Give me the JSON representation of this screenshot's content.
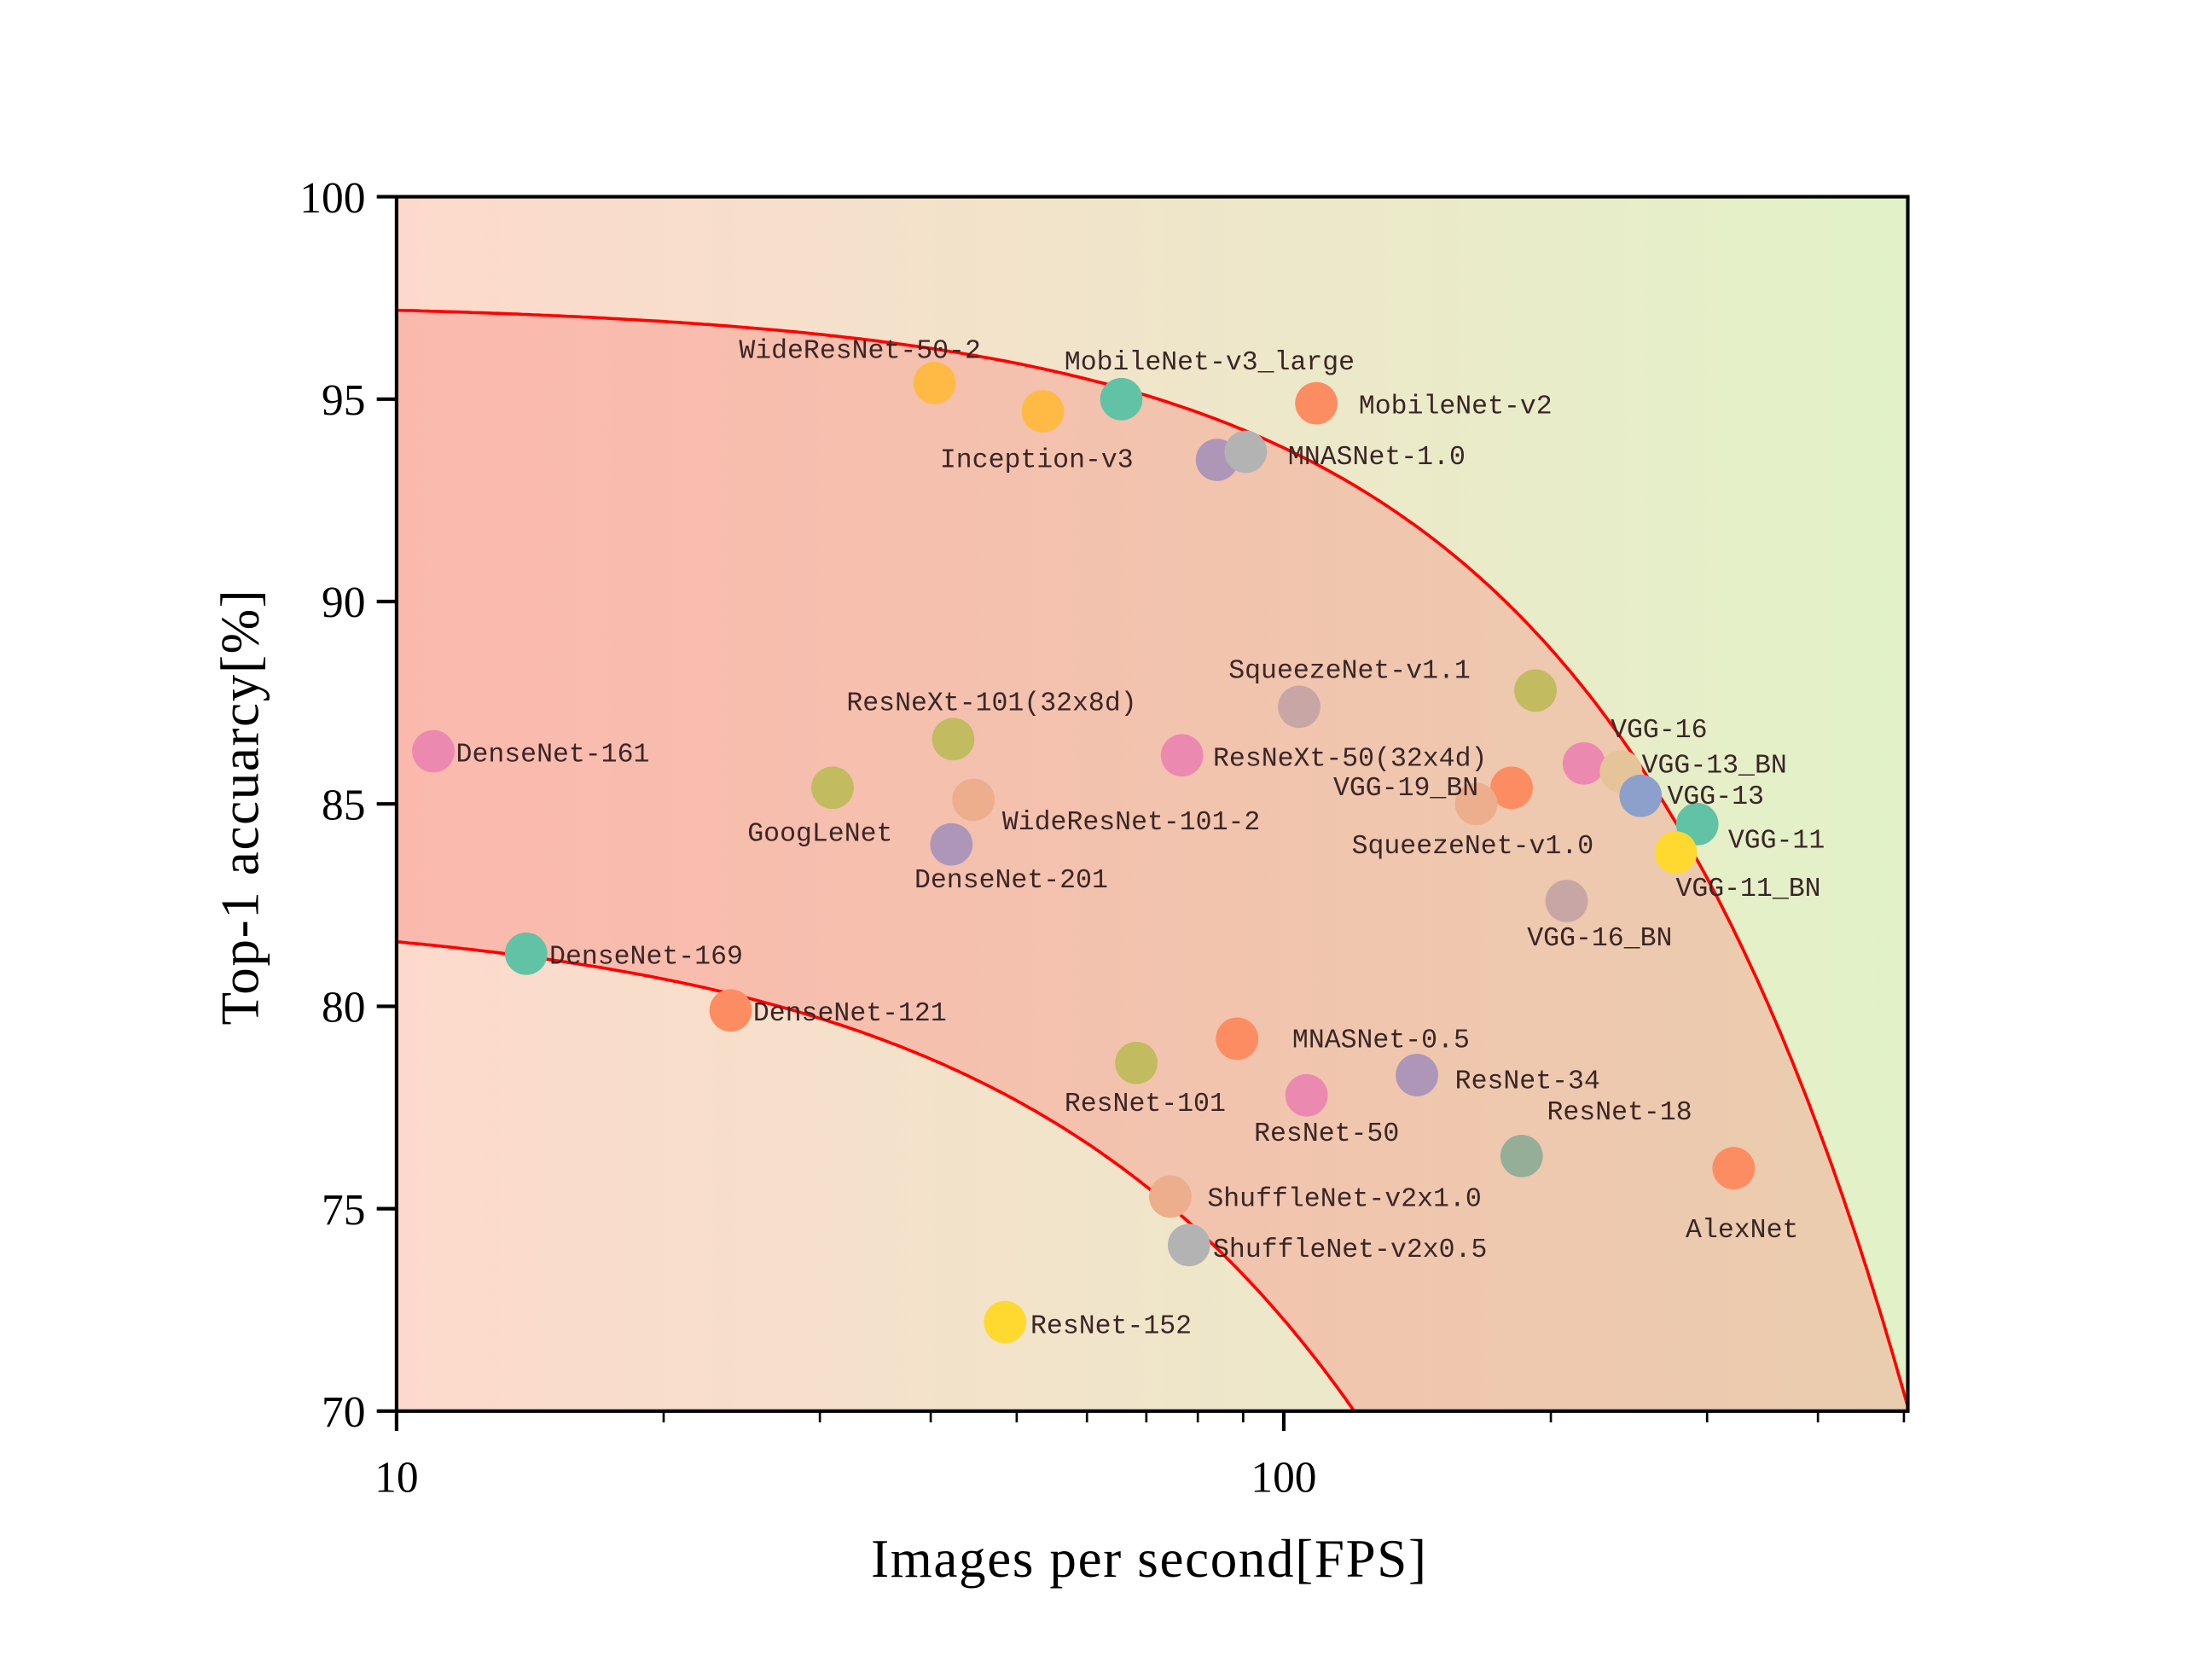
{
  "chart_data": {
    "type": "scatter",
    "title": "",
    "xlabel": "Images per second[FPS]",
    "ylabel": "Top-1 accuarcy[%]",
    "xscale": "log",
    "xlim": [
      10,
      505
    ],
    "ylim": [
      70,
      100
    ],
    "xticks": [
      10,
      100
    ],
    "xtick_labels": [
      "10",
      "100"
    ],
    "yticks": [
      70,
      75,
      80,
      85,
      90,
      95,
      100
    ],
    "ytick_labels": [
      "70",
      "75",
      "80",
      "85",
      "90",
      "95",
      "100"
    ],
    "grid": false,
    "legend": "none",
    "background_gradient": [
      "#fdd9cc",
      "#e2f2c8"
    ],
    "band_gradient": [
      "#fbb9ae",
      "#eacdaf"
    ],
    "curve_color": "#ff0000",
    "points": [
      {
        "label": "DenseNet-161",
        "x": 11.0,
        "y": 86.3,
        "color": "#ec89b0"
      },
      {
        "label": "DenseNet-169",
        "x": 14.0,
        "y": 81.3,
        "color": "#62c2a6"
      },
      {
        "label": "DenseNet-121",
        "x": 23.8,
        "y": 79.9,
        "color": "#fc8d62"
      },
      {
        "label": "GoogLeNet",
        "x": 31.0,
        "y": 85.4,
        "color": "#c2bb5f"
      },
      {
        "label": "ResNeXt-101(32x8d)",
        "x": 42.4,
        "y": 86.6,
        "color": "#c2bb5f"
      },
      {
        "label": "WideResNet-101-2",
        "x": 44.7,
        "y": 85.1,
        "color": "#ecae8c"
      },
      {
        "label": "DenseNet-201",
        "x": 42.2,
        "y": 84.0,
        "color": "#ad96b8"
      },
      {
        "label": "WideResNet-50-2",
        "x": 40.4,
        "y": 95.4,
        "color": "#ffba45"
      },
      {
        "label": "Inception-v3",
        "x": 53.5,
        "y": 94.7,
        "color": "#ffba45"
      },
      {
        "label": "MobileNet-v3_large",
        "x": 65.6,
        "y": 95.0,
        "color": "#62c2a6"
      },
      {
        "label": "MobileNet-v2",
        "x": 108.8,
        "y": 94.9,
        "color": "#fc8d62"
      },
      {
        "label": "",
        "x": 84.1,
        "y": 93.5,
        "color": "#ad96b8"
      },
      {
        "label": "MNASNet-1.0",
        "x": 90.6,
        "y": 93.7,
        "color": "#b3b3b3"
      },
      {
        "label": "SqueezeNet-v1.1",
        "x": 104.1,
        "y": 87.4,
        "color": "#c8a6a6"
      },
      {
        "label": "",
        "x": 192.2,
        "y": 87.8,
        "color": "#c2bb5f"
      },
      {
        "label": "ResNeXt-50(32x4d)",
        "x": 76.8,
        "y": 86.2,
        "color": "#ec89b0"
      },
      {
        "label": "VGG-19_BN",
        "x": 180.6,
        "y": 85.4,
        "color": "#fc8d62"
      },
      {
        "label": "SqueezeNet-v1.0",
        "x": 164.8,
        "y": 85.0,
        "color": "#ecae8c"
      },
      {
        "label": "VGG-16",
        "x": 217.9,
        "y": 86.0,
        "color": "#ec89b0"
      },
      {
        "label": "VGG-13_BN",
        "x": 239.9,
        "y": 85.8,
        "color": "#e6c49a"
      },
      {
        "label": "VGG-13",
        "x": 252.5,
        "y": 85.2,
        "color": "#8da0cb"
      },
      {
        "label": "VGG-11",
        "x": 292.4,
        "y": 84.5,
        "color": "#62c2a6"
      },
      {
        "label": "VGG-11_BN",
        "x": 276.7,
        "y": 83.8,
        "color": "#ffd92f"
      },
      {
        "label": "VGG-16_BN",
        "x": 208.4,
        "y": 82.6,
        "color": "#c8a6a6"
      },
      {
        "label": "MNASNet-0.5",
        "x": 88.6,
        "y": 79.2,
        "color": "#fc8d62"
      },
      {
        "label": "ResNet-101",
        "x": 68.2,
        "y": 78.6,
        "color": "#c2bb5f"
      },
      {
        "label": "ResNet-50",
        "x": 106.1,
        "y": 77.8,
        "color": "#ec89b0"
      },
      {
        "label": "ResNet-34",
        "x": 141.3,
        "y": 78.3,
        "color": "#ad96b8"
      },
      {
        "label": "ResNet-18",
        "x": 185.4,
        "y": 76.3,
        "color": "#94ae98"
      },
      {
        "label": "AlexNet",
        "x": 321.4,
        "y": 76.0,
        "color": "#fc8d62"
      },
      {
        "label": "ShuffleNet-v2x1.0",
        "x": 74.5,
        "y": 75.3,
        "color": "#ecae8c"
      },
      {
        "label": "ShuffleNet-v2x0.5",
        "x": 78.2,
        "y": 74.1,
        "color": "#b3b3b3"
      },
      {
        "label": "ResNet-152",
        "x": 48.5,
        "y": 72.2,
        "color": "#ffd92f"
      }
    ]
  }
}
